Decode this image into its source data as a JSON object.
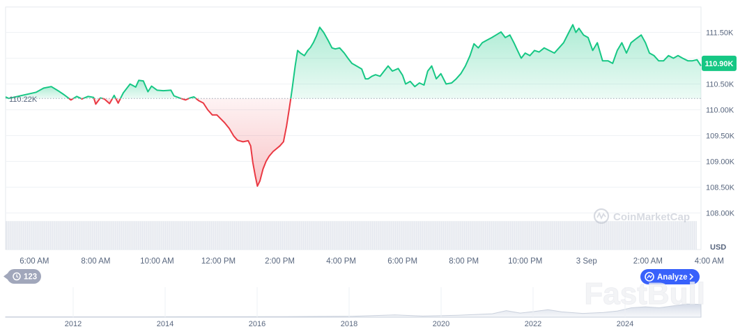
{
  "chart_data": {
    "type": "area",
    "baseline": {
      "value": 110.22,
      "label": "110.22K"
    },
    "current_price": {
      "value": 110.9,
      "label": "110.90K"
    },
    "y_axis": {
      "unit": "USD",
      "ticks": [
        {
          "value": 108.0,
          "label": "108.00K"
        },
        {
          "value": 108.5,
          "label": "108.50K"
        },
        {
          "value": 109.0,
          "label": "109.00K"
        },
        {
          "value": 109.5,
          "label": "109.50K"
        },
        {
          "value": 110.0,
          "label": "110.00K"
        },
        {
          "value": 110.5,
          "label": "110.50K"
        },
        {
          "value": 111.0,
          "label": "111.00K"
        },
        {
          "value": 111.5,
          "label": "111.50K"
        }
      ]
    },
    "x_axis": {
      "ticks": [
        {
          "t": 6,
          "label": "6:00 AM"
        },
        {
          "t": 8,
          "label": "8:00 AM"
        },
        {
          "t": 10,
          "label": "10:00 AM"
        },
        {
          "t": 12,
          "label": "12:00 PM"
        },
        {
          "t": 14,
          "label": "2:00 PM"
        },
        {
          "t": 16,
          "label": "4:00 PM"
        },
        {
          "t": 18,
          "label": "6:00 PM"
        },
        {
          "t": 20,
          "label": "8:00 PM"
        },
        {
          "t": 22,
          "label": "10:00 PM"
        },
        {
          "t": 24,
          "label": "3 Sep"
        },
        {
          "t": 26,
          "label": "2:00 AM"
        },
        {
          "t": 28,
          "label": "4:00 AM"
        }
      ]
    },
    "series": [
      {
        "points": [
          [
            5.06,
            110.25
          ],
          [
            5.16,
            110.22
          ],
          [
            6.06,
            110.34
          ],
          [
            6.3,
            110.42
          ],
          [
            6.55,
            110.45
          ],
          [
            6.77,
            110.37
          ],
          [
            6.97,
            110.29
          ],
          [
            7.19,
            110.19
          ],
          [
            7.38,
            110.26
          ],
          [
            7.55,
            110.21
          ],
          [
            7.75,
            110.26
          ],
          [
            7.93,
            110.24
          ],
          [
            8.0,
            110.11
          ],
          [
            8.15,
            110.23
          ],
          [
            8.28,
            110.21
          ],
          [
            8.45,
            110.12
          ],
          [
            8.6,
            110.28
          ],
          [
            8.73,
            110.13
          ],
          [
            8.9,
            110.33
          ],
          [
            9.12,
            110.5
          ],
          [
            9.3,
            110.44
          ],
          [
            9.4,
            110.57
          ],
          [
            9.55,
            110.56
          ],
          [
            9.7,
            110.35
          ],
          [
            9.82,
            110.46
          ],
          [
            10.0,
            110.38
          ],
          [
            10.2,
            110.37
          ],
          [
            10.45,
            110.38
          ],
          [
            10.55,
            110.27
          ],
          [
            10.77,
            110.22
          ],
          [
            10.93,
            110.19
          ],
          [
            11.07,
            110.23
          ],
          [
            11.2,
            110.25
          ],
          [
            11.35,
            110.18
          ],
          [
            11.51,
            110.13
          ],
          [
            11.65,
            110.0
          ],
          [
            11.8,
            109.9
          ],
          [
            11.95,
            109.9
          ],
          [
            12.1,
            109.81
          ],
          [
            12.2,
            109.75
          ],
          [
            12.35,
            109.64
          ],
          [
            12.5,
            109.49
          ],
          [
            12.62,
            109.41
          ],
          [
            12.8,
            109.38
          ],
          [
            12.97,
            109.4
          ],
          [
            13.05,
            109.3
          ],
          [
            13.12,
            108.98
          ],
          [
            13.2,
            108.72
          ],
          [
            13.27,
            108.52
          ],
          [
            13.35,
            108.62
          ],
          [
            13.45,
            108.85
          ],
          [
            13.55,
            109.0
          ],
          [
            13.65,
            109.1
          ],
          [
            13.78,
            109.19
          ],
          [
            13.9,
            109.25
          ],
          [
            14.0,
            109.3
          ],
          [
            14.12,
            109.38
          ],
          [
            14.22,
            109.69
          ],
          [
            14.31,
            110.03
          ],
          [
            14.41,
            110.44
          ],
          [
            14.5,
            110.85
          ],
          [
            14.58,
            111.15
          ],
          [
            14.67,
            111.1
          ],
          [
            14.8,
            111.05
          ],
          [
            14.91,
            111.15
          ],
          [
            15.0,
            111.21
          ],
          [
            15.1,
            111.31
          ],
          [
            15.2,
            111.44
          ],
          [
            15.3,
            111.6
          ],
          [
            15.43,
            111.5
          ],
          [
            15.57,
            111.35
          ],
          [
            15.7,
            111.2
          ],
          [
            15.81,
            111.18
          ],
          [
            15.95,
            111.2
          ],
          [
            16.1,
            111.1
          ],
          [
            16.22,
            111.0
          ],
          [
            16.35,
            110.9
          ],
          [
            16.5,
            110.85
          ],
          [
            16.67,
            110.79
          ],
          [
            16.79,
            110.6
          ],
          [
            16.88,
            110.6
          ],
          [
            17.0,
            110.65
          ],
          [
            17.12,
            110.68
          ],
          [
            17.27,
            110.65
          ],
          [
            17.4,
            110.75
          ],
          [
            17.53,
            110.85
          ],
          [
            17.67,
            110.75
          ],
          [
            17.86,
            110.8
          ],
          [
            18.0,
            110.67
          ],
          [
            18.1,
            110.5
          ],
          [
            18.25,
            110.55
          ],
          [
            18.4,
            110.45
          ],
          [
            18.55,
            110.52
          ],
          [
            18.7,
            110.48
          ],
          [
            18.82,
            110.75
          ],
          [
            18.95,
            110.85
          ],
          [
            19.1,
            110.6
          ],
          [
            19.25,
            110.7
          ],
          [
            19.42,
            110.5
          ],
          [
            19.6,
            110.52
          ],
          [
            19.75,
            110.6
          ],
          [
            19.9,
            110.7
          ],
          [
            20.05,
            110.85
          ],
          [
            20.2,
            111.05
          ],
          [
            20.33,
            111.28
          ],
          [
            20.47,
            111.2
          ],
          [
            20.6,
            111.3
          ],
          [
            20.75,
            111.35
          ],
          [
            20.91,
            111.4
          ],
          [
            21.05,
            111.45
          ],
          [
            21.21,
            111.51
          ],
          [
            21.35,
            111.4
          ],
          [
            21.5,
            111.45
          ],
          [
            21.63,
            111.3
          ],
          [
            21.75,
            111.15
          ],
          [
            21.87,
            111.0
          ],
          [
            22.0,
            111.1
          ],
          [
            22.15,
            111.05
          ],
          [
            22.3,
            111.15
          ],
          [
            22.45,
            111.12
          ],
          [
            22.62,
            111.2
          ],
          [
            22.78,
            111.15
          ],
          [
            22.95,
            111.1
          ],
          [
            23.1,
            111.2
          ],
          [
            23.25,
            111.3
          ],
          [
            23.42,
            111.5
          ],
          [
            23.55,
            111.65
          ],
          [
            23.65,
            111.5
          ],
          [
            23.75,
            111.58
          ],
          [
            23.9,
            111.45
          ],
          [
            24.05,
            111.4
          ],
          [
            24.2,
            111.15
          ],
          [
            24.35,
            111.3
          ],
          [
            24.52,
            110.95
          ],
          [
            24.7,
            110.95
          ],
          [
            24.85,
            110.9
          ],
          [
            25.0,
            111.15
          ],
          [
            25.15,
            111.3
          ],
          [
            25.3,
            111.1
          ],
          [
            25.45,
            111.3
          ],
          [
            25.62,
            111.38
          ],
          [
            25.78,
            111.45
          ],
          [
            25.92,
            111.3
          ],
          [
            26.05,
            111.1
          ],
          [
            26.2,
            111.05
          ],
          [
            26.35,
            110.95
          ],
          [
            26.51,
            110.95
          ],
          [
            26.67,
            111.05
          ],
          [
            26.83,
            111.0
          ],
          [
            26.98,
            111.05
          ],
          [
            27.13,
            111.0
          ],
          [
            27.3,
            110.95
          ],
          [
            27.45,
            110.95
          ],
          [
            27.6,
            110.97
          ],
          [
            27.73,
            110.85
          ]
        ]
      }
    ],
    "volume": {
      "level": 0.85
    },
    "range_selector": {
      "years": [
        "2012",
        "2014",
        "2016",
        "2018",
        "2020",
        "2022",
        "2024"
      ],
      "history": [
        [
          0,
          0.02
        ],
        [
          0.2,
          0.02
        ],
        [
          0.4,
          0.03
        ],
        [
          0.5,
          0.05
        ],
        [
          0.56,
          0.12
        ],
        [
          0.6,
          0.06
        ],
        [
          0.65,
          0.1
        ],
        [
          0.7,
          0.18
        ],
        [
          0.72,
          0.35
        ],
        [
          0.74,
          0.22
        ],
        [
          0.76,
          0.3
        ],
        [
          0.78,
          0.4
        ],
        [
          0.8,
          0.28
        ],
        [
          0.83,
          0.2
        ],
        [
          0.86,
          0.25
        ],
        [
          0.88,
          0.33
        ],
        [
          0.9,
          0.5
        ],
        [
          0.92,
          0.55
        ],
        [
          0.94,
          0.5
        ],
        [
          0.96,
          0.6
        ],
        [
          0.98,
          0.7
        ],
        [
          1.0,
          0.68
        ]
      ]
    },
    "ui": {
      "history_badge": "123",
      "analyze_button": "Analyze",
      "watermark_brand": "CoinMarketCap",
      "watermark_corner": "FastBull"
    },
    "colors": {
      "up": "#16c784",
      "down": "#ea3943",
      "grid": "#eff2f5",
      "text": "#58667e",
      "badge_up": "#16c784",
      "analyze": "#3861fb",
      "history_badge": "#a1a7bb"
    }
  }
}
